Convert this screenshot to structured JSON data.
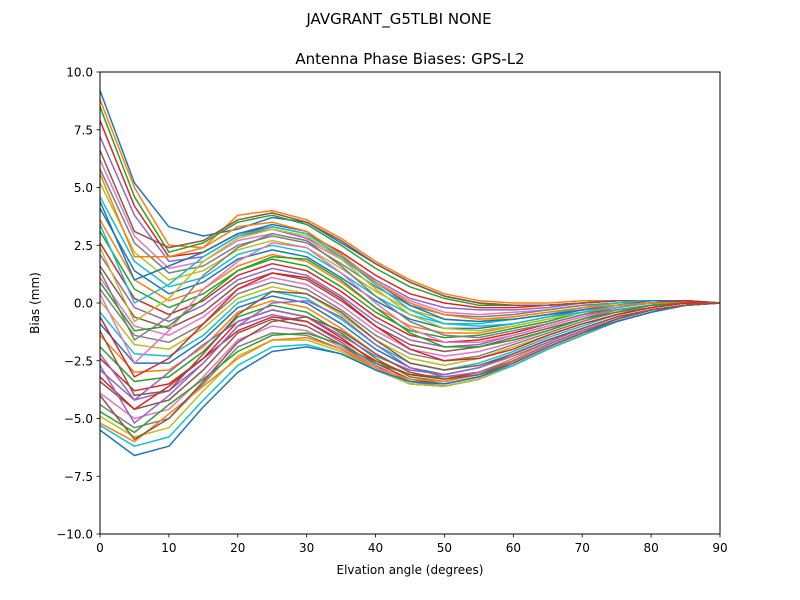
{
  "figure": {
    "suptitle": "JAVGRANT_G5TLBI NONE"
  },
  "chart_data": {
    "type": "line",
    "title": "Antenna Phase Biases: GPS-L2",
    "xlabel": "Elvation angle (degrees)",
    "ylabel": "Bias (mm)",
    "xlim": [
      0,
      90
    ],
    "ylim": [
      -10,
      10
    ],
    "xticks": [
      0,
      10,
      20,
      30,
      40,
      50,
      60,
      70,
      80,
      90
    ],
    "yticks": [
      -10.0,
      -7.5,
      -5.0,
      -2.5,
      0.0,
      2.5,
      5.0,
      7.5,
      10.0
    ],
    "xtick_labels": [
      "0",
      "10",
      "20",
      "30",
      "40",
      "50",
      "60",
      "70",
      "80",
      "90"
    ],
    "ytick_labels": [
      "−10.0",
      "−7.5",
      "−5.0",
      "−2.5",
      "0.0",
      "2.5",
      "5.0",
      "7.5",
      "10.0"
    ],
    "grid": false,
    "legend": "none",
    "colors": [
      "#1f77b4",
      "#ff7f0e",
      "#2ca02c",
      "#d62728",
      "#9467bd",
      "#8c564b",
      "#e377c2",
      "#7f7f7f",
      "#bcbd22",
      "#17becf"
    ],
    "x": [
      0,
      5,
      10,
      15,
      20,
      25,
      30,
      35,
      40,
      45,
      50,
      55,
      60,
      65,
      70,
      75,
      80,
      85,
      90
    ],
    "series": [
      {
        "values": [
          9.2,
          5.2,
          3.3,
          2.9,
          3.2,
          3.7,
          3.5,
          2.6,
          1.7,
          0.9,
          0.3,
          0.0,
          -0.1,
          -0.1,
          0.0,
          0.1,
          0.1,
          0.1,
          0.0
        ]
      },
      {
        "values": [
          8.8,
          5.0,
          2.5,
          2.4,
          3.8,
          4.0,
          3.6,
          2.8,
          1.8,
          1.0,
          0.4,
          0.1,
          0.0,
          0.0,
          0.1,
          0.1,
          0.1,
          0.1,
          0.0
        ]
      },
      {
        "values": [
          8.5,
          4.6,
          2.2,
          2.6,
          3.5,
          3.8,
          3.4,
          2.5,
          1.5,
          0.7,
          0.2,
          -0.1,
          -0.1,
          -0.1,
          0.0,
          0.1,
          0.1,
          0.1,
          0.0
        ]
      },
      {
        "values": [
          7.9,
          4.2,
          2.0,
          2.2,
          3.0,
          3.3,
          3.0,
          2.2,
          1.2,
          0.4,
          0.0,
          -0.2,
          -0.2,
          -0.1,
          0.0,
          0.1,
          0.1,
          0.1,
          0.0
        ]
      },
      {
        "values": [
          7.2,
          3.8,
          1.8,
          2.0,
          2.9,
          3.2,
          2.8,
          2.0,
          1.0,
          0.2,
          -0.2,
          -0.3,
          -0.3,
          -0.2,
          0.0,
          0.1,
          0.1,
          0.1,
          0.0
        ]
      },
      {
        "values": [
          6.6,
          3.1,
          2.4,
          2.7,
          3.6,
          3.9,
          3.5,
          2.7,
          1.7,
          0.9,
          0.3,
          0.0,
          -0.1,
          -0.1,
          0.0,
          0.1,
          0.1,
          0.1,
          0.0
        ]
      },
      {
        "values": [
          6.2,
          2.9,
          1.5,
          1.8,
          2.7,
          3.0,
          2.7,
          1.9,
          0.9,
          0.1,
          -0.4,
          -0.5,
          -0.4,
          -0.3,
          -0.1,
          0.0,
          0.1,
          0.1,
          0.0
        ]
      },
      {
        "values": [
          5.8,
          2.6,
          1.3,
          1.6,
          2.5,
          2.9,
          2.6,
          1.7,
          0.7,
          -0.1,
          -0.5,
          -0.6,
          -0.5,
          -0.3,
          -0.1,
          0.0,
          0.1,
          0.1,
          0.0
        ]
      },
      {
        "values": [
          5.2,
          2.2,
          1.0,
          1.4,
          2.3,
          2.7,
          2.4,
          1.5,
          0.5,
          -0.3,
          -0.7,
          -0.8,
          -0.6,
          -0.4,
          -0.2,
          0.0,
          0.1,
          0.1,
          0.0
        ]
      },
      {
        "values": [
          4.6,
          1.8,
          0.7,
          1.1,
          2.1,
          2.5,
          2.2,
          1.3,
          0.3,
          -0.5,
          -0.9,
          -0.9,
          -0.7,
          -0.5,
          -0.2,
          0.0,
          0.1,
          0.1,
          0.0
        ]
      },
      {
        "values": [
          4.1,
          1.4,
          0.4,
          0.9,
          1.9,
          2.3,
          2.0,
          1.1,
          0.1,
          -0.7,
          -1.1,
          -1.1,
          -0.9,
          -0.6,
          -0.3,
          -0.1,
          0.1,
          0.1,
          0.0
        ]
      },
      {
        "values": [
          3.6,
          1.0,
          0.1,
          0.6,
          1.6,
          2.1,
          1.8,
          0.9,
          -0.2,
          -1.0,
          -1.3,
          -1.3,
          -1.0,
          -0.7,
          -0.4,
          -0.1,
          0.0,
          0.1,
          0.0
        ]
      },
      {
        "values": [
          3.1,
          0.6,
          -0.2,
          0.4,
          1.4,
          1.9,
          1.6,
          0.7,
          -0.4,
          -1.2,
          -1.5,
          -1.4,
          -1.1,
          -0.8,
          -0.4,
          -0.2,
          0.0,
          0.1,
          0.0
        ]
      },
      {
        "values": [
          2.6,
          0.2,
          -0.5,
          0.1,
          1.2,
          1.7,
          1.4,
          0.5,
          -0.6,
          -1.4,
          -1.7,
          -1.6,
          -1.3,
          -0.9,
          -0.5,
          -0.2,
          0.0,
          0.1,
          0.0
        ]
      },
      {
        "values": [
          2.1,
          -0.2,
          -0.8,
          -0.1,
          1.0,
          1.5,
          1.2,
          0.3,
          -0.8,
          -1.6,
          -1.9,
          -1.8,
          -1.4,
          -1.0,
          -0.6,
          -0.3,
          -0.1,
          0.0,
          0.0
        ]
      },
      {
        "values": [
          1.6,
          -0.6,
          -1.1,
          -0.4,
          0.8,
          1.3,
          1.0,
          0.1,
          -1.0,
          -1.8,
          -2.1,
          -1.9,
          -1.5,
          -1.1,
          -0.7,
          -0.3,
          -0.1,
          0.0,
          0.0
        ]
      },
      {
        "values": [
          1.1,
          -1.0,
          -1.4,
          -0.6,
          0.6,
          1.1,
          0.8,
          -0.1,
          -1.2,
          -2.0,
          -2.3,
          -2.1,
          -1.7,
          -1.2,
          -0.7,
          -0.4,
          -0.1,
          0.0,
          0.0
        ]
      },
      {
        "values": [
          0.6,
          -1.4,
          -1.7,
          -0.9,
          0.4,
          0.9,
          0.6,
          -0.3,
          -1.4,
          -2.2,
          -2.5,
          -2.3,
          -1.8,
          -1.3,
          -0.8,
          -0.4,
          -0.2,
          0.0,
          0.0
        ]
      },
      {
        "values": [
          0.1,
          -1.8,
          -2.0,
          -1.1,
          0.2,
          0.7,
          0.4,
          -0.5,
          -1.6,
          -2.4,
          -2.7,
          -2.4,
          -1.9,
          -1.4,
          -0.9,
          -0.5,
          -0.2,
          0.0,
          0.0
        ]
      },
      {
        "values": [
          -0.4,
          -2.2,
          -2.3,
          -1.4,
          0.0,
          0.5,
          0.2,
          -0.7,
          -1.8,
          -2.6,
          -2.9,
          -2.6,
          -2.1,
          -1.5,
          -1.0,
          -0.5,
          -0.2,
          0.0,
          0.0
        ]
      },
      {
        "values": [
          -0.9,
          -2.6,
          -2.6,
          -1.6,
          -0.2,
          0.3,
          0.0,
          -0.9,
          -2.0,
          -2.8,
          -3.1,
          -2.8,
          -2.2,
          -1.6,
          -1.1,
          -0.6,
          -0.3,
          -0.1,
          0.0
        ]
      },
      {
        "values": [
          -1.4,
          -3.0,
          -2.9,
          -1.9,
          -0.4,
          0.1,
          -0.2,
          -1.1,
          -2.2,
          -3.0,
          -3.3,
          -3.0,
          -2.4,
          -1.7,
          -1.1,
          -0.6,
          -0.3,
          -0.1,
          0.0
        ]
      },
      {
        "values": [
          -1.9,
          -3.4,
          -3.2,
          -2.1,
          -0.6,
          -0.1,
          -0.4,
          -1.3,
          -2.4,
          -3.2,
          -3.4,
          -3.1,
          -2.5,
          -1.8,
          -1.2,
          -0.7,
          -0.3,
          -0.1,
          0.0
        ]
      },
      {
        "values": [
          -2.4,
          -3.8,
          -3.5,
          -2.4,
          -0.8,
          -0.3,
          -0.6,
          -1.5,
          -2.6,
          -3.3,
          -3.5,
          -3.2,
          -2.6,
          -1.9,
          -1.3,
          -0.7,
          -0.3,
          -0.1,
          0.0
        ]
      },
      {
        "values": [
          -2.9,
          -4.2,
          -3.8,
          -2.6,
          -1.0,
          -0.5,
          -0.8,
          -1.7,
          -2.7,
          -3.4,
          -3.6,
          -3.3,
          -2.7,
          -2.0,
          -1.4,
          -0.8,
          -0.4,
          -0.1,
          0.0
        ]
      },
      {
        "values": [
          -3.4,
          -4.6,
          -4.2,
          -2.9,
          -1.3,
          -0.7,
          -1.0,
          -1.8,
          -2.8,
          -3.5,
          -3.6,
          -3.3,
          -2.7,
          -2.0,
          -1.4,
          -0.8,
          -0.4,
          -0.1,
          0.0
        ]
      },
      {
        "values": [
          -3.9,
          -5.0,
          -4.6,
          -3.2,
          -1.6,
          -1.0,
          -1.2,
          -1.9,
          -2.8,
          -3.5,
          -3.6,
          -3.3,
          -2.7,
          -2.0,
          -1.4,
          -0.8,
          -0.4,
          -0.1,
          0.0
        ]
      },
      {
        "values": [
          -4.4,
          -5.4,
          -5.0,
          -3.5,
          -1.9,
          -1.3,
          -1.4,
          -2.0,
          -2.9,
          -3.5,
          -3.6,
          -3.3,
          -2.7,
          -2.0,
          -1.4,
          -0.8,
          -0.4,
          -0.1,
          0.0
        ]
      },
      {
        "values": [
          -4.9,
          -5.8,
          -5.4,
          -3.8,
          -2.3,
          -1.6,
          -1.6,
          -2.1,
          -2.9,
          -3.5,
          -3.6,
          -3.3,
          -2.7,
          -2.0,
          -1.4,
          -0.8,
          -0.4,
          -0.1,
          0.0
        ]
      },
      {
        "values": [
          -5.3,
          -6.2,
          -5.8,
          -4.2,
          -2.7,
          -1.9,
          -1.8,
          -2.2,
          -2.9,
          -3.4,
          -3.5,
          -3.2,
          -2.7,
          -2.0,
          -1.4,
          -0.8,
          -0.4,
          -0.1,
          0.0
        ]
      },
      {
        "values": [
          -5.5,
          -6.6,
          -6.2,
          -4.5,
          -3.0,
          -2.1,
          -1.9,
          -2.2,
          -2.9,
          -3.4,
          -3.5,
          -3.2,
          -2.6,
          -1.9,
          -1.3,
          -0.8,
          -0.4,
          -0.1,
          0.0
        ]
      },
      {
        "values": [
          -5.2,
          -6.0,
          -4.8,
          -3.6,
          -2.4,
          -1.6,
          -1.5,
          -2.0,
          -2.8,
          -3.3,
          -3.4,
          -3.1,
          -2.6,
          -1.9,
          -1.3,
          -0.7,
          -0.3,
          -0.1,
          0.0
        ]
      },
      {
        "values": [
          -4.7,
          -5.6,
          -4.4,
          -3.3,
          -2.1,
          -1.4,
          -1.3,
          -1.8,
          -2.6,
          -3.1,
          -3.2,
          -3.0,
          -2.5,
          -1.8,
          -1.2,
          -0.7,
          -0.3,
          -0.1,
          0.0
        ]
      },
      {
        "values": [
          -3.2,
          -4.6,
          -3.6,
          -2.4,
          -1.2,
          -0.6,
          -0.8,
          -1.6,
          -2.5,
          -3.1,
          -3.3,
          -3.0,
          -2.5,
          -1.8,
          -1.2,
          -0.7,
          -0.3,
          -0.1,
          0.0
        ]
      },
      {
        "values": [
          -2.2,
          -4.2,
          -3.0,
          -1.8,
          -0.8,
          -0.3,
          -0.6,
          -1.4,
          -2.3,
          -2.9,
          -3.1,
          -2.8,
          -2.3,
          -1.7,
          -1.1,
          -0.6,
          -0.3,
          -0.1,
          0.0
        ]
      },
      {
        "values": [
          -1.2,
          -4.0,
          -3.8,
          -2.2,
          -0.5,
          0.5,
          0.4,
          -0.4,
          -1.6,
          -2.6,
          -2.9,
          -2.7,
          -2.2,
          -1.6,
          -1.1,
          -0.6,
          -0.3,
          -0.1,
          0.0
        ]
      },
      {
        "values": [
          0.4,
          -2.6,
          -1.2,
          0.6,
          1.8,
          2.6,
          2.4,
          1.3,
          0.0,
          -1.1,
          -1.7,
          -1.7,
          -1.4,
          -1.0,
          -0.6,
          -0.3,
          -0.1,
          0.0,
          0.0
        ]
      },
      {
        "values": [
          1.4,
          -1.6,
          -0.6,
          1.2,
          2.4,
          3.0,
          2.7,
          1.6,
          0.3,
          -0.8,
          -1.4,
          -1.5,
          -1.2,
          -0.9,
          -0.5,
          -0.3,
          -0.1,
          0.0,
          0.0
        ]
      },
      {
        "values": [
          2.4,
          -0.8,
          0.2,
          1.8,
          2.8,
          3.2,
          2.9,
          1.9,
          0.6,
          -0.5,
          -1.1,
          -1.2,
          -1.0,
          -0.7,
          -0.4,
          -0.2,
          0.0,
          0.0,
          0.0
        ]
      },
      {
        "values": [
          3.4,
          0.0,
          0.8,
          2.0,
          2.9,
          3.3,
          3.0,
          2.0,
          0.8,
          -0.3,
          -0.9,
          -1.0,
          -0.9,
          -0.6,
          -0.4,
          -0.2,
          0.0,
          0.0,
          0.0
        ]
      },
      {
        "values": [
          4.4,
          1.0,
          1.6,
          2.2,
          3.0,
          3.4,
          3.1,
          2.1,
          0.9,
          -0.1,
          -0.7,
          -0.8,
          -0.7,
          -0.5,
          -0.3,
          -0.1,
          0.0,
          0.0,
          0.0
        ]
      },
      {
        "values": [
          5.6,
          2.0,
          2.0,
          2.4,
          3.3,
          3.5,
          3.1,
          2.1,
          0.9,
          0.0,
          -0.5,
          -0.7,
          -0.6,
          -0.4,
          -0.2,
          -0.1,
          0.0,
          0.0,
          0.0
        ]
      },
      {
        "values": [
          0.9,
          -1.2,
          -1.0,
          0.2,
          1.4,
          2.0,
          1.9,
          1.0,
          -0.2,
          -1.3,
          -1.9,
          -1.9,
          -1.6,
          -1.2,
          -0.7,
          -0.4,
          -0.1,
          0.0,
          0.0
        ]
      },
      {
        "values": [
          -0.6,
          -3.2,
          -2.4,
          -0.9,
          0.6,
          1.3,
          1.1,
          0.2,
          -1.0,
          -2.0,
          -2.5,
          -2.4,
          -2.0,
          -1.4,
          -0.9,
          -0.5,
          -0.2,
          0.0,
          0.0
        ]
      },
      {
        "values": [
          -2.7,
          -5.2,
          -4.0,
          -2.6,
          -1.0,
          0.0,
          0.1,
          -0.6,
          -1.8,
          -2.8,
          -3.2,
          -3.0,
          -2.5,
          -1.8,
          -1.2,
          -0.7,
          -0.3,
          -0.1,
          0.0
        ]
      },
      {
        "values": [
          -4.0,
          -5.9,
          -5.0,
          -3.4,
          -1.7,
          -0.8,
          -0.6,
          -1.2,
          -2.2,
          -3.0,
          -3.3,
          -3.1,
          -2.6,
          -1.9,
          -1.3,
          -0.7,
          -0.3,
          -0.1,
          0.0
        ]
      }
    ]
  }
}
